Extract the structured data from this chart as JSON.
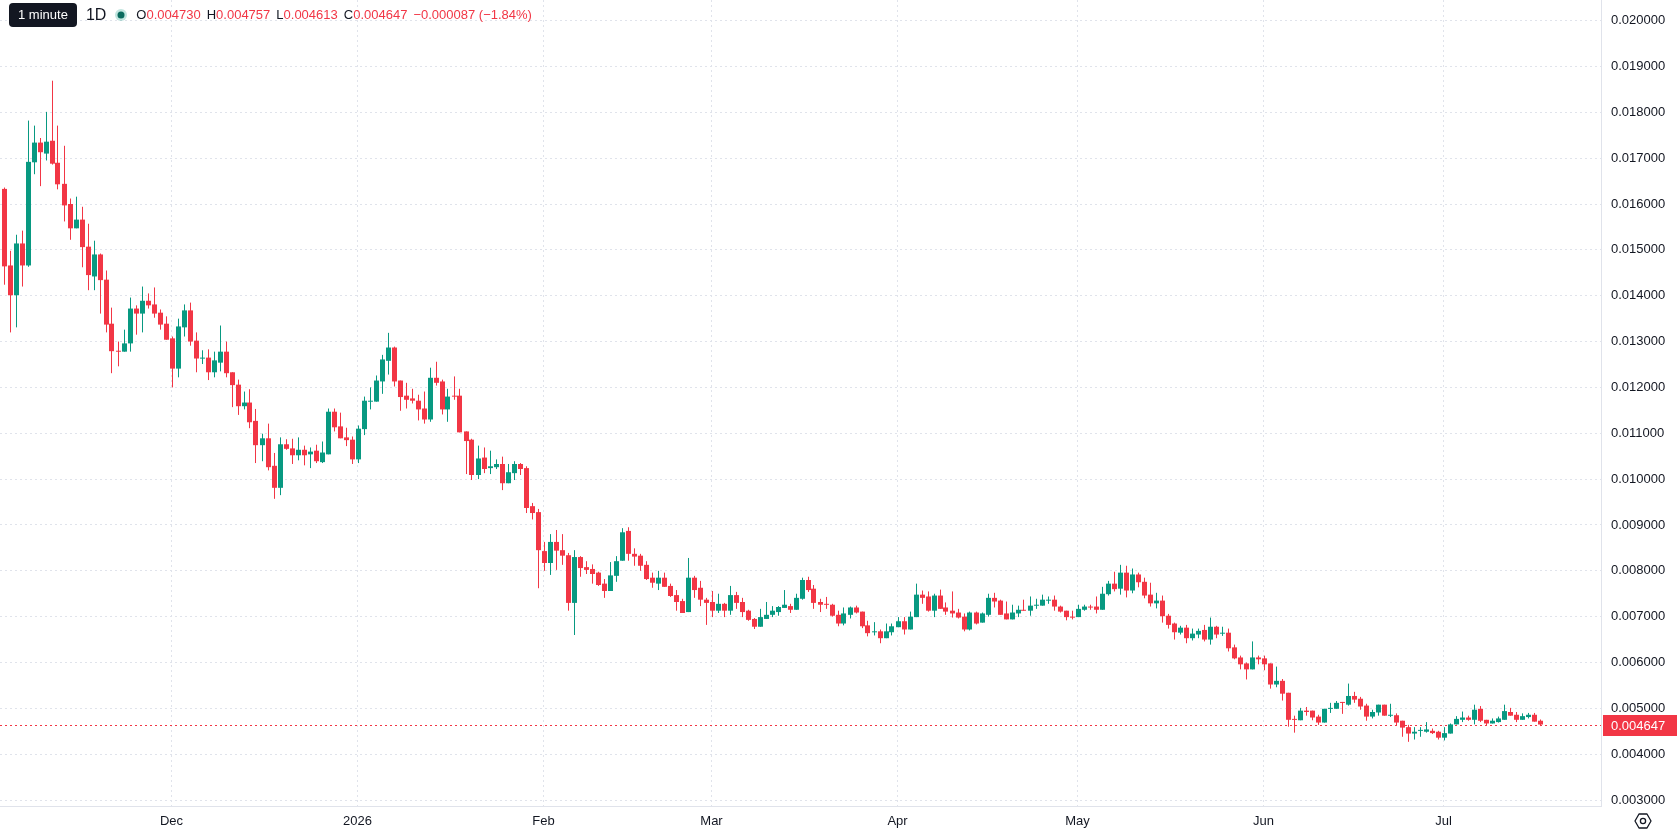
{
  "chart_data": {
    "type": "candlestick",
    "title": "1D",
    "annotations": [
      "1 minute",
      "O0.004730",
      "H0.004757",
      "L0.004613",
      "C0.004647",
      "−0.000087 (−1.84%)"
    ],
    "x": [
      "2025-11-03",
      "2025-11-04",
      "2025-11-05",
      "2025-11-06",
      "2025-11-07",
      "2025-11-08",
      "2025-11-09",
      "2025-11-10",
      "2025-11-11",
      "2025-11-12",
      "2025-11-13",
      "2025-11-14",
      "2025-11-15",
      "2025-11-16",
      "2025-11-17",
      "2025-11-18",
      "2025-11-19",
      "2025-11-20",
      "2025-11-21",
      "2025-11-22",
      "2025-11-23",
      "2025-11-24",
      "2025-11-25",
      "2025-11-26",
      "2025-11-27",
      "2025-11-28",
      "2025-11-29",
      "2025-11-30",
      "2025-12-01",
      "2025-12-02",
      "2025-12-03",
      "2025-12-04",
      "2025-12-05",
      "2025-12-06",
      "2025-12-07",
      "2025-12-08",
      "2025-12-09",
      "2025-12-10",
      "2025-12-11",
      "2025-12-12",
      "2025-12-13",
      "2025-12-14",
      "2025-12-15",
      "2025-12-16",
      "2025-12-17",
      "2025-12-18",
      "2025-12-19",
      "2025-12-20",
      "2025-12-21",
      "2025-12-22",
      "2025-12-23",
      "2025-12-24",
      "2025-12-25",
      "2025-12-26",
      "2025-12-27",
      "2025-12-28",
      "2025-12-29",
      "2025-12-30",
      "2025-12-31",
      "2026-01-01",
      "2026-01-02",
      "2026-01-03",
      "2026-01-04",
      "2026-01-05",
      "2026-01-06",
      "2026-01-07",
      "2026-01-08",
      "2026-01-09",
      "2026-01-10",
      "2026-01-11",
      "2026-01-12",
      "2026-01-13",
      "2026-01-14",
      "2026-01-15",
      "2026-01-16",
      "2026-01-17",
      "2026-01-18",
      "2026-01-19",
      "2026-01-20",
      "2026-01-21",
      "2026-01-22",
      "2026-01-23",
      "2026-01-24",
      "2026-01-25",
      "2026-01-26",
      "2026-01-27",
      "2026-01-28",
      "2026-01-29",
      "2026-01-30",
      "2026-01-31",
      "2026-02-01",
      "2026-02-02",
      "2026-02-03",
      "2026-02-04",
      "2026-02-05",
      "2026-02-06",
      "2026-02-07",
      "2026-02-08",
      "2026-02-09",
      "2026-02-10",
      "2026-02-11",
      "2026-02-12",
      "2026-02-13",
      "2026-02-14",
      "2026-02-15",
      "2026-02-16",
      "2026-02-17",
      "2026-02-18",
      "2026-02-19",
      "2026-02-20",
      "2026-02-21",
      "2026-02-22",
      "2026-02-23",
      "2026-02-24",
      "2026-02-25",
      "2026-02-26",
      "2026-02-27",
      "2026-02-28",
      "2026-03-01",
      "2026-03-02",
      "2026-03-03",
      "2026-03-04",
      "2026-03-05",
      "2026-03-06",
      "2026-03-07",
      "2026-03-08",
      "2026-03-09",
      "2026-03-10",
      "2026-03-11",
      "2026-03-12",
      "2026-03-13",
      "2026-03-14",
      "2026-03-15",
      "2026-03-16",
      "2026-03-17",
      "2026-03-18",
      "2026-03-19",
      "2026-03-20",
      "2026-03-21",
      "2026-03-22",
      "2026-03-23",
      "2026-03-24",
      "2026-03-25",
      "2026-03-26",
      "2026-03-27",
      "2026-03-28",
      "2026-03-29",
      "2026-03-30",
      "2026-03-31",
      "2026-04-01",
      "2026-04-02",
      "2026-04-03",
      "2026-04-04",
      "2026-04-05",
      "2026-04-06",
      "2026-04-07",
      "2026-04-08",
      "2026-04-09",
      "2026-04-10",
      "2026-04-11",
      "2026-04-12",
      "2026-04-13",
      "2026-04-14",
      "2026-04-15",
      "2026-04-16",
      "2026-04-17",
      "2026-04-18",
      "2026-04-19",
      "2026-04-20",
      "2026-04-21",
      "2026-04-22",
      "2026-04-23",
      "2026-04-24",
      "2026-04-25",
      "2026-04-26",
      "2026-04-27",
      "2026-04-28",
      "2026-04-29",
      "2026-04-30",
      "2026-05-01",
      "2026-05-02",
      "2026-05-03",
      "2026-05-04",
      "2026-05-05",
      "2026-05-06",
      "2026-05-07",
      "2026-05-08",
      "2026-05-09",
      "2026-05-10",
      "2026-05-11",
      "2026-05-12",
      "2026-05-13",
      "2026-05-14",
      "2026-05-15",
      "2026-05-16",
      "2026-05-17",
      "2026-05-18",
      "2026-05-19",
      "2026-05-20",
      "2026-05-21",
      "2026-05-22",
      "2026-05-23",
      "2026-05-24",
      "2026-05-25",
      "2026-05-26",
      "2026-05-27",
      "2026-05-28",
      "2026-05-29",
      "2026-05-30",
      "2026-05-31",
      "2026-06-01",
      "2026-06-02",
      "2026-06-03",
      "2026-06-04",
      "2026-06-05",
      "2026-06-06",
      "2026-06-07",
      "2026-06-08",
      "2026-06-09",
      "2026-06-10",
      "2026-06-11",
      "2026-06-12",
      "2026-06-13",
      "2026-06-14",
      "2026-06-15",
      "2026-06-16",
      "2026-06-17",
      "2026-06-18",
      "2026-06-19",
      "2026-06-20",
      "2026-06-21",
      "2026-06-22",
      "2026-06-23",
      "2026-06-24",
      "2026-06-25",
      "2026-06-26",
      "2026-06-27",
      "2026-06-28",
      "2026-06-29",
      "2026-06-30",
      "2026-07-01",
      "2026-07-02",
      "2026-07-03",
      "2026-07-04",
      "2026-07-05",
      "2026-07-06",
      "2026-07-07",
      "2026-07-08",
      "2026-07-09",
      "2026-07-10",
      "2026-07-11",
      "2026-07-12",
      "2026-07-13",
      "2026-07-14",
      "2026-07-15",
      "2026-07-16",
      "2026-07-17"
    ],
    "ohlc": [
      [
        0.01633,
        0.01636,
        0.01424,
        0.01464
      ],
      [
        0.01466,
        0.01498,
        0.0132,
        0.01401
      ],
      [
        0.01401,
        0.01533,
        0.01331,
        0.01514
      ],
      [
        0.01514,
        0.01542,
        0.0142,
        0.01466
      ],
      [
        0.01466,
        0.01782,
        0.01463,
        0.01692
      ],
      [
        0.01691,
        0.01771,
        0.01665,
        0.01734
      ],
      [
        0.01734,
        0.01744,
        0.01639,
        0.01713
      ],
      [
        0.0171,
        0.01801,
        0.01695,
        0.01736
      ],
      [
        0.01738,
        0.01869,
        0.01686,
        0.01688
      ],
      [
        0.0169,
        0.01771,
        0.01632,
        0.01643
      ],
      [
        0.01644,
        0.01727,
        0.01562,
        0.01597
      ],
      [
        0.016,
        0.01612,
        0.01522,
        0.01547
      ],
      [
        0.01547,
        0.01616,
        0.01547,
        0.01566
      ],
      [
        0.01566,
        0.01594,
        0.01462,
        0.01506
      ],
      [
        0.01507,
        0.01557,
        0.01412,
        0.01445
      ],
      [
        0.01442,
        0.0152,
        0.01412,
        0.0149
      ],
      [
        0.0149,
        0.01492,
        0.01361,
        0.01434
      ],
      [
        0.01435,
        0.01455,
        0.0132,
        0.01337
      ],
      [
        0.01339,
        0.01374,
        0.01231,
        0.01279
      ],
      [
        0.0128,
        0.013,
        0.01246,
        0.01278
      ],
      [
        0.01278,
        0.01326,
        0.01278,
        0.01296
      ],
      [
        0.01296,
        0.01396,
        0.01278,
        0.01372
      ],
      [
        0.01372,
        0.01379,
        0.01315,
        0.01361
      ],
      [
        0.01361,
        0.0142,
        0.0132,
        0.01389
      ],
      [
        0.01389,
        0.01405,
        0.01372,
        0.01379
      ],
      [
        0.01381,
        0.01418,
        0.01352,
        0.01361
      ],
      [
        0.01363,
        0.0137,
        0.01326,
        0.01337
      ],
      [
        0.01339,
        0.01355,
        0.01304,
        0.01304
      ],
      [
        0.01307,
        0.01311,
        0.012,
        0.01241
      ],
      [
        0.01241,
        0.0135,
        0.01222,
        0.01333
      ],
      [
        0.01331,
        0.01381,
        0.01311,
        0.01368
      ],
      [
        0.01368,
        0.01385,
        0.01291,
        0.013
      ],
      [
        0.01302,
        0.0132,
        0.01233,
        0.01263
      ],
      [
        0.01263,
        0.01281,
        0.01251,
        0.01265
      ],
      [
        0.01265,
        0.01283,
        0.01216,
        0.01233
      ],
      [
        0.01233,
        0.01278,
        0.01222,
        0.01259
      ],
      [
        0.01254,
        0.01335,
        0.01235,
        0.01278
      ],
      [
        0.01278,
        0.013,
        0.01222,
        0.01231
      ],
      [
        0.01233,
        0.01233,
        0.01157,
        0.01205
      ],
      [
        0.01206,
        0.01217,
        0.0114,
        0.01159
      ],
      [
        0.01159,
        0.01191,
        0.01152,
        0.01167
      ],
      [
        0.01167,
        0.01196,
        0.01111,
        0.01124
      ],
      [
        0.01127,
        0.01153,
        0.01035,
        0.01074
      ],
      [
        0.01074,
        0.01099,
        0.01039,
        0.01089
      ],
      [
        0.01089,
        0.01121,
        0.01019,
        0.01026
      ],
      [
        0.01029,
        0.01057,
        0.00957,
        0.00981
      ],
      [
        0.00981,
        0.01091,
        0.00965,
        0.01076
      ],
      [
        0.01076,
        0.01087,
        0.01064,
        0.01066
      ],
      [
        0.01067,
        0.01088,
        0.01033,
        0.01052
      ],
      [
        0.01052,
        0.01091,
        0.01041,
        0.01064
      ],
      [
        0.01064,
        0.01073,
        0.0103,
        0.01052
      ],
      [
        0.01054,
        0.01069,
        0.01024,
        0.0106
      ],
      [
        0.01062,
        0.01075,
        0.01035,
        0.01039
      ],
      [
        0.01037,
        0.01082,
        0.01035,
        0.01058
      ],
      [
        0.01054,
        0.01154,
        0.01054,
        0.01147
      ],
      [
        0.01147,
        0.01154,
        0.01104,
        0.01113
      ],
      [
        0.01115,
        0.01145,
        0.01089,
        0.01089
      ],
      [
        0.01091,
        0.01112,
        0.01072,
        0.01085
      ],
      [
        0.01086,
        0.01093,
        0.01033,
        0.01043
      ],
      [
        0.01043,
        0.01117,
        0.01035,
        0.0111
      ],
      [
        0.01109,
        0.0118,
        0.01096,
        0.01171
      ],
      [
        0.01169,
        0.012,
        0.01152,
        0.01171
      ],
      [
        0.01169,
        0.01226,
        0.01169,
        0.01215
      ],
      [
        0.01213,
        0.01271,
        0.01186,
        0.01261
      ],
      [
        0.01258,
        0.01319,
        0.01228,
        0.01287
      ],
      [
        0.01287,
        0.01289,
        0.01202,
        0.01213
      ],
      [
        0.01215,
        0.01215,
        0.01149,
        0.01179
      ],
      [
        0.01182,
        0.0121,
        0.01154,
        0.01173
      ],
      [
        0.01176,
        0.01197,
        0.01165,
        0.01171
      ],
      [
        0.01171,
        0.01184,
        0.01128,
        0.01152
      ],
      [
        0.01154,
        0.01191,
        0.01121,
        0.0113
      ],
      [
        0.0113,
        0.01243,
        0.01125,
        0.01221
      ],
      [
        0.01221,
        0.01256,
        0.01204,
        0.0121
      ],
      [
        0.01213,
        0.01217,
        0.01141,
        0.01152
      ],
      [
        0.01152,
        0.01197,
        0.01125,
        0.0118
      ],
      [
        0.01182,
        0.01224,
        0.01173,
        0.0118
      ],
      [
        0.01182,
        0.01197,
        0.01102,
        0.01102
      ],
      [
        0.01104,
        0.01104,
        0.01011,
        0.01083
      ],
      [
        0.01086,
        0.01088,
        0.00998,
        0.01009
      ],
      [
        0.01009,
        0.01073,
        0.01,
        0.01045
      ],
      [
        0.01047,
        0.01069,
        0.01013,
        0.01022
      ],
      [
        0.01024,
        0.01062,
        0.01011,
        0.01028
      ],
      [
        0.01026,
        0.01043,
        0.01022,
        0.01033
      ],
      [
        0.01033,
        0.01049,
        0.00976,
        0.00991
      ],
      [
        0.00991,
        0.01033,
        0.00991,
        0.01015
      ],
      [
        0.01013,
        0.01039,
        0.00998,
        0.01033
      ],
      [
        0.01033,
        0.01035,
        0.01009,
        0.01022
      ],
      [
        0.01024,
        0.01028,
        0.00926,
        0.00937
      ],
      [
        0.00941,
        0.00948,
        0.00912,
        0.00926
      ],
      [
        0.00928,
        0.00935,
        0.00762,
        0.00845
      ],
      [
        0.00843,
        0.00863,
        0.008,
        0.00817
      ],
      [
        0.00817,
        0.0088,
        0.00791,
        0.00863
      ],
      [
        0.00863,
        0.00889,
        0.00802,
        0.00844
      ],
      [
        0.00845,
        0.0088,
        0.00813,
        0.00833
      ],
      [
        0.00834,
        0.00839,
        0.00713,
        0.0073
      ],
      [
        0.0073,
        0.00845,
        0.0066,
        0.0083
      ],
      [
        0.0083,
        0.00832,
        0.00787,
        0.00806
      ],
      [
        0.00808,
        0.00821,
        0.00793,
        0.00802
      ],
      [
        0.00804,
        0.00814,
        0.00772,
        0.00793
      ],
      [
        0.00796,
        0.00798,
        0.00767,
        0.00769
      ],
      [
        0.00772,
        0.00782,
        0.00741,
        0.00756
      ],
      [
        0.00756,
        0.00819,
        0.00756,
        0.0079
      ],
      [
        0.00789,
        0.00832,
        0.00776,
        0.00821
      ],
      [
        0.00822,
        0.00893,
        0.00822,
        0.00884
      ],
      [
        0.00887,
        0.00895,
        0.00822,
        0.00837
      ],
      [
        0.00837,
        0.00849,
        0.00811,
        0.00831
      ],
      [
        0.00833,
        0.00837,
        0.008,
        0.00811
      ],
      [
        0.00813,
        0.00821,
        0.0078,
        0.00782
      ],
      [
        0.00785,
        0.00796,
        0.00763,
        0.00774
      ],
      [
        0.00772,
        0.008,
        0.00758,
        0.00785
      ],
      [
        0.00785,
        0.00796,
        0.00765,
        0.00765
      ],
      [
        0.00767,
        0.00772,
        0.00743,
        0.00745
      ],
      [
        0.00747,
        0.00758,
        0.00713,
        0.00732
      ],
      [
        0.00734,
        0.00739,
        0.00708,
        0.00708
      ],
      [
        0.0071,
        0.00828,
        0.0071,
        0.00785
      ],
      [
        0.00785,
        0.00789,
        0.00741,
        0.00758
      ],
      [
        0.00763,
        0.00778,
        0.00723,
        0.00737
      ],
      [
        0.00737,
        0.00741,
        0.00682,
        0.0073
      ],
      [
        0.00732,
        0.00756,
        0.00699,
        0.00713
      ],
      [
        0.00713,
        0.0075,
        0.00708,
        0.00728
      ],
      [
        0.00728,
        0.0073,
        0.00699,
        0.00713
      ],
      [
        0.00713,
        0.00767,
        0.00704,
        0.00747
      ],
      [
        0.00747,
        0.00754,
        0.00717,
        0.0073
      ],
      [
        0.00732,
        0.00741,
        0.00699,
        0.0071
      ],
      [
        0.00713,
        0.00715,
        0.00691,
        0.00693
      ],
      [
        0.00695,
        0.00697,
        0.00673,
        0.00678
      ],
      [
        0.00678,
        0.00717,
        0.00678,
        0.00699
      ],
      [
        0.00695,
        0.00732,
        0.00695,
        0.00704
      ],
      [
        0.00704,
        0.00723,
        0.00699,
        0.00713
      ],
      [
        0.0071,
        0.00723,
        0.00702,
        0.00721
      ],
      [
        0.00719,
        0.00758,
        0.00719,
        0.00726
      ],
      [
        0.00723,
        0.00728,
        0.00708,
        0.00715
      ],
      [
        0.00715,
        0.0075,
        0.00715,
        0.00741
      ],
      [
        0.00739,
        0.00785,
        0.00737,
        0.0078
      ],
      [
        0.0078,
        0.00787,
        0.00754,
        0.00758
      ],
      [
        0.00761,
        0.00769,
        0.00717,
        0.0073
      ],
      [
        0.00732,
        0.00739,
        0.0071,
        0.00726
      ],
      [
        0.00728,
        0.00743,
        0.00717,
        0.00726
      ],
      [
        0.00726,
        0.00728,
        0.007,
        0.00702
      ],
      [
        0.00704,
        0.00713,
        0.00679,
        0.00685
      ],
      [
        0.00685,
        0.0072,
        0.00681,
        0.00707
      ],
      [
        0.00704,
        0.00722,
        0.00696,
        0.0072
      ],
      [
        0.0072,
        0.00724,
        0.00707,
        0.00709
      ],
      [
        0.00711,
        0.00711,
        0.00675,
        0.00679
      ],
      [
        0.00681,
        0.00691,
        0.00657,
        0.00664
      ],
      [
        0.00666,
        0.00688,
        0.00659,
        0.00668
      ],
      [
        0.00668,
        0.00672,
        0.00642,
        0.00653
      ],
      [
        0.00653,
        0.00685,
        0.00653,
        0.00668
      ],
      [
        0.00666,
        0.00685,
        0.00659,
        0.00679
      ],
      [
        0.00677,
        0.00699,
        0.00677,
        0.0069
      ],
      [
        0.0069,
        0.00699,
        0.00661,
        0.00672
      ],
      [
        0.00672,
        0.00711,
        0.00672,
        0.007
      ],
      [
        0.00699,
        0.00772,
        0.00699,
        0.00748
      ],
      [
        0.00748,
        0.00757,
        0.00728,
        0.00741
      ],
      [
        0.00744,
        0.00755,
        0.00711,
        0.00713
      ],
      [
        0.00713,
        0.0075,
        0.00699,
        0.00746
      ],
      [
        0.00746,
        0.00759,
        0.00717,
        0.00717
      ],
      [
        0.0072,
        0.00731,
        0.00704,
        0.00711
      ],
      [
        0.00713,
        0.00755,
        0.00698,
        0.00707
      ],
      [
        0.00709,
        0.00717,
        0.00696,
        0.00698
      ],
      [
        0.007,
        0.00707,
        0.00668,
        0.00672
      ],
      [
        0.00672,
        0.00711,
        0.0067,
        0.00709
      ],
      [
        0.00709,
        0.00711,
        0.00683,
        0.00685
      ],
      [
        0.00687,
        0.00709,
        0.00687,
        0.00707
      ],
      [
        0.00704,
        0.0075,
        0.007,
        0.00741
      ],
      [
        0.00741,
        0.00752,
        0.0072,
        0.00733
      ],
      [
        0.00735,
        0.00737,
        0.00704,
        0.00704
      ],
      [
        0.00707,
        0.00733,
        0.00694,
        0.00694
      ],
      [
        0.00694,
        0.00726,
        0.00694,
        0.00709
      ],
      [
        0.00707,
        0.00724,
        0.00699,
        0.00715
      ],
      [
        0.00715,
        0.00737,
        0.00713,
        0.00713
      ],
      [
        0.00713,
        0.00744,
        0.00702,
        0.00724
      ],
      [
        0.00724,
        0.00739,
        0.00717,
        0.00726
      ],
      [
        0.00724,
        0.00748,
        0.00724,
        0.00737
      ],
      [
        0.00735,
        0.00744,
        0.00728,
        0.00737
      ],
      [
        0.00737,
        0.00746,
        0.00713,
        0.00722
      ],
      [
        0.00722,
        0.00724,
        0.00709,
        0.00711
      ],
      [
        0.00713,
        0.00713,
        0.00692,
        0.00699
      ],
      [
        0.007,
        0.00713,
        0.00694,
        0.00698
      ],
      [
        0.00699,
        0.00726,
        0.00699,
        0.00717
      ],
      [
        0.00715,
        0.00726,
        0.00713,
        0.00722
      ],
      [
        0.00722,
        0.00726,
        0.00715,
        0.0072
      ],
      [
        0.00722,
        0.00744,
        0.00707,
        0.00715
      ],
      [
        0.00715,
        0.00765,
        0.00715,
        0.0075
      ],
      [
        0.00749,
        0.00778,
        0.00746,
        0.00772
      ],
      [
        0.00772,
        0.00798,
        0.00755,
        0.0076
      ],
      [
        0.00761,
        0.00813,
        0.00748,
        0.00796
      ],
      [
        0.00796,
        0.00811,
        0.00742,
        0.00757
      ],
      [
        0.00757,
        0.00805,
        0.00751,
        0.00792
      ],
      [
        0.00792,
        0.00796,
        0.00764,
        0.00775
      ],
      [
        0.00776,
        0.00785,
        0.0074,
        0.00746
      ],
      [
        0.00748,
        0.00774,
        0.00722,
        0.00729
      ],
      [
        0.00729,
        0.00752,
        0.00718,
        0.00735
      ],
      [
        0.00735,
        0.00746,
        0.00687,
        0.00701
      ],
      [
        0.00702,
        0.00706,
        0.00674,
        0.00682
      ],
      [
        0.00685,
        0.00687,
        0.0065,
        0.00666
      ],
      [
        0.00665,
        0.0068,
        0.00661,
        0.00676
      ],
      [
        0.00676,
        0.00682,
        0.00642,
        0.00653
      ],
      [
        0.00653,
        0.00674,
        0.00648,
        0.00663
      ],
      [
        0.00661,
        0.00674,
        0.00653,
        0.00669
      ],
      [
        0.00671,
        0.00682,
        0.00646,
        0.0065
      ],
      [
        0.0065,
        0.00698,
        0.00639,
        0.00678
      ],
      [
        0.00678,
        0.0068,
        0.00653,
        0.00661
      ],
      [
        0.00663,
        0.00678,
        0.00658,
        0.00665
      ],
      [
        0.00665,
        0.00674,
        0.00624,
        0.00631
      ],
      [
        0.00633,
        0.00639,
        0.00607,
        0.00609
      ],
      [
        0.00611,
        0.00615,
        0.00585,
        0.00596
      ],
      [
        0.00598,
        0.006,
        0.00563,
        0.00585
      ],
      [
        0.00585,
        0.00646,
        0.00585,
        0.00611
      ],
      [
        0.00611,
        0.00615,
        0.00596,
        0.00607
      ],
      [
        0.00609,
        0.00615,
        0.00583,
        0.00596
      ],
      [
        0.00598,
        0.00598,
        0.00543,
        0.00552
      ],
      [
        0.00552,
        0.00591,
        0.00546,
        0.0056
      ],
      [
        0.0056,
        0.00564,
        0.00517,
        0.00532
      ],
      [
        0.00534,
        0.00534,
        0.0046,
        0.00475
      ],
      [
        0.00477,
        0.00484,
        0.00447,
        0.00475
      ],
      [
        0.00474,
        0.00501,
        0.00474,
        0.00495
      ],
      [
        0.00495,
        0.00503,
        0.00484,
        0.00492
      ],
      [
        0.00495,
        0.00495,
        0.00474,
        0.0048
      ],
      [
        0.00482,
        0.00486,
        0.00464,
        0.00469
      ],
      [
        0.00469,
        0.00499,
        0.00469,
        0.00499
      ],
      [
        0.00499,
        0.00512,
        0.0049,
        0.00501
      ],
      [
        0.00499,
        0.00516,
        0.00499,
        0.00512
      ],
      [
        0.00514,
        0.00514,
        0.00488,
        0.00512
      ],
      [
        0.00508,
        0.00554,
        0.00506,
        0.00527
      ],
      [
        0.00527,
        0.00536,
        0.00512,
        0.00519
      ],
      [
        0.00521,
        0.00525,
        0.00497,
        0.00504
      ],
      [
        0.00506,
        0.0051,
        0.00473,
        0.00482
      ],
      [
        0.00482,
        0.00497,
        0.00478,
        0.00492
      ],
      [
        0.00491,
        0.00508,
        0.00484,
        0.00508
      ],
      [
        0.00508,
        0.00508,
        0.00484,
        0.00484
      ],
      [
        0.00484,
        0.0051,
        0.00481,
        0.00486
      ],
      [
        0.00485,
        0.00489,
        0.00463,
        0.00469
      ],
      [
        0.00473,
        0.00473,
        0.00438,
        0.00458
      ],
      [
        0.00459,
        0.00464,
        0.00427,
        0.00445
      ],
      [
        0.00445,
        0.00459,
        0.00432,
        0.00449
      ],
      [
        0.00451,
        0.00459,
        0.00438,
        0.00453
      ],
      [
        0.00449,
        0.0047,
        0.00447,
        0.00454
      ],
      [
        0.00451,
        0.00456,
        0.00444,
        0.00446
      ],
      [
        0.00449,
        0.00451,
        0.00432,
        0.00436
      ],
      [
        0.00436,
        0.00459,
        0.0043,
        0.00446
      ],
      [
        0.00445,
        0.00467,
        0.00445,
        0.00465
      ],
      [
        0.00465,
        0.00483,
        0.00465,
        0.00477
      ],
      [
        0.00475,
        0.00493,
        0.0047,
        0.0048
      ],
      [
        0.0048,
        0.00484,
        0.00473,
        0.00475
      ],
      [
        0.00475,
        0.00508,
        0.00465,
        0.00497
      ],
      [
        0.00499,
        0.00505,
        0.0047,
        0.00473
      ],
      [
        0.00475,
        0.00475,
        0.00462,
        0.00467
      ],
      [
        0.00467,
        0.00478,
        0.00467,
        0.00473
      ],
      [
        0.0047,
        0.00482,
        0.00469,
        0.00478
      ],
      [
        0.00475,
        0.00508,
        0.00475,
        0.00494
      ],
      [
        0.00492,
        0.00501,
        0.00484,
        0.00484
      ],
      [
        0.00486,
        0.00492,
        0.0047,
        0.00475
      ],
      [
        0.00475,
        0.00489,
        0.00475,
        0.00483
      ],
      [
        0.00481,
        0.0049,
        0.00478,
        0.00486
      ],
      [
        0.00486,
        0.0049,
        0.00471,
        0.00471
      ],
      [
        0.00473,
        0.004757,
        0.004613,
        0.004647
      ]
    ],
    "colors": [
      "#f23645",
      "#f23645",
      "#089981",
      "#f23645",
      "#089981",
      "#089981",
      "#f23645",
      "#089981",
      "#f23645",
      "#f23645",
      "#f23645",
      "#f23645",
      "#089981",
      "#f23645",
      "#f23645",
      "#089981",
      "#f23645",
      "#f23645",
      "#f23645",
      "#f23645",
      "#089981",
      "#089981",
      "#f23645",
      "#089981",
      "#f23645",
      "#f23645",
      "#f23645",
      "#f23645",
      "#f23645",
      "#089981",
      "#089981",
      "#f23645",
      "#f23645",
      "#089981",
      "#f23645",
      "#089981",
      "#089981",
      "#f23645",
      "#f23645",
      "#f23645",
      "#089981",
      "#f23645",
      "#f23645",
      "#089981",
      "#f23645",
      "#f23645",
      "#089981",
      "#f23645",
      "#f23645",
      "#089981",
      "#f23645",
      "#089981",
      "#f23645",
      "#089981",
      "#089981",
      "#f23645",
      "#f23645",
      "#f23645",
      "#f23645",
      "#089981",
      "#089981",
      "#089981",
      "#089981",
      "#089981",
      "#089981",
      "#f23645",
      "#f23645",
      "#f23645",
      "#f23645",
      "#f23645",
      "#f23645",
      "#089981",
      "#f23645",
      "#f23645",
      "#089981",
      "#f23645",
      "#f23645",
      "#f23645",
      "#f23645",
      "#089981",
      "#f23645",
      "#089981",
      "#089981",
      "#f23645",
      "#089981",
      "#089981",
      "#f23645",
      "#f23645",
      "#f23645",
      "#f23645",
      "#f23645",
      "#089981",
      "#f23645",
      "#f23645",
      "#f23645",
      "#089981",
      "#f23645",
      "#f23645",
      "#f23645",
      "#f23645",
      "#f23645",
      "#089981",
      "#089981",
      "#089981",
      "#f23645",
      "#f23645",
      "#f23645",
      "#f23645",
      "#f23645",
      "#089981",
      "#f23645",
      "#f23645",
      "#f23645",
      "#f23645",
      "#089981",
      "#f23645",
      "#f23645",
      "#f23645",
      "#f23645",
      "#089981",
      "#f23645",
      "#089981",
      "#f23645",
      "#f23645",
      "#f23645",
      "#f23645",
      "#089981",
      "#089981",
      "#089981",
      "#089981",
      "#089981",
      "#f23645",
      "#089981",
      "#089981",
      "#f23645",
      "#f23645",
      "#f23645",
      "#f23645",
      "#f23645",
      "#f23645",
      "#089981",
      "#089981",
      "#f23645",
      "#f23645",
      "#f23645",
      "#089981",
      "#f23645",
      "#089981",
      "#089981",
      "#089981",
      "#f23645",
      "#089981",
      "#089981",
      "#f23645",
      "#f23645",
      "#089981",
      "#f23645",
      "#f23645",
      "#f23645",
      "#f23645",
      "#f23645",
      "#089981",
      "#f23645",
      "#089981",
      "#089981",
      "#f23645",
      "#f23645",
      "#f23645",
      "#089981",
      "#089981",
      "#f23645",
      "#089981",
      "#089981",
      "#089981",
      "#089981",
      "#f23645",
      "#f23645",
      "#f23645",
      "#f23645",
      "#089981",
      "#089981",
      "#f23645",
      "#f23645",
      "#089981",
      "#089981",
      "#f23645",
      "#089981",
      "#f23645",
      "#089981",
      "#f23645",
      "#f23645",
      "#f23645",
      "#089981",
      "#f23645",
      "#f23645",
      "#f23645",
      "#089981",
      "#f23645",
      "#089981",
      "#089981",
      "#f23645",
      "#089981",
      "#f23645",
      "#089981",
      "#f23645",
      "#f23645",
      "#f23645",
      "#f23645",
      "#089981",
      "#f23645",
      "#f23645",
      "#f23645",
      "#089981",
      "#f23645",
      "#f23645",
      "#f23645",
      "#089981",
      "#f23645",
      "#f23645",
      "#f23645",
      "#089981",
      "#089981",
      "#089981",
      "#f23645",
      "#089981",
      "#f23645",
      "#f23645",
      "#f23645",
      "#089981",
      "#089981",
      "#f23645",
      "#089981",
      "#f23645",
      "#f23645",
      "#f23645",
      "#089981",
      "#089981",
      "#089981",
      "#f23645",
      "#f23645",
      "#089981",
      "#089981",
      "#089981",
      "#089981",
      "#f23645",
      "#089981",
      "#f23645",
      "#f23645",
      "#089981",
      "#089981",
      "#089981",
      "#f23645",
      "#f23645",
      "#089981",
      "#089981",
      "#f23645",
      "#f23645"
    ],
    "xlim": [
      "2025-11-02T10:00",
      "2026-07-27T06:00"
    ],
    "xticks": [
      {
        "value": "2025-12-01",
        "label": "Dec"
      },
      {
        "value": "2026-01-01",
        "label": "2026"
      },
      {
        "value": "2026-02-01",
        "label": "Feb"
      },
      {
        "value": "2026-03-01",
        "label": "Mar"
      },
      {
        "value": "2026-04-01",
        "label": "Apr"
      },
      {
        "value": "2026-05-01",
        "label": "May"
      },
      {
        "value": "2026-06-01",
        "label": "Jun"
      },
      {
        "value": "2026-07-01",
        "label": "Jul"
      }
    ],
    "ylim": [
      0.00287,
      0.02045
    ],
    "yticks": [
      {
        "value": 0.003,
        "label": "0.003000"
      },
      {
        "value": 0.004,
        "label": "0.004000"
      },
      {
        "value": 0.005,
        "label": "0.005000"
      },
      {
        "value": 0.006,
        "label": "0.006000"
      },
      {
        "value": 0.007,
        "label": "0.007000"
      },
      {
        "value": 0.008,
        "label": "0.008000"
      },
      {
        "value": 0.009,
        "label": "0.009000"
      },
      {
        "value": 0.01,
        "label": "0.010000"
      },
      {
        "value": 0.011,
        "label": "0.011000"
      },
      {
        "value": 0.012,
        "label": "0.012000"
      },
      {
        "value": 0.013,
        "label": "0.013000"
      },
      {
        "value": 0.014,
        "label": "0.014000"
      },
      {
        "value": 0.015,
        "label": "0.015000"
      },
      {
        "value": 0.016,
        "label": "0.016000"
      },
      {
        "value": 0.017,
        "label": "0.017000"
      },
      {
        "value": 0.018,
        "label": "0.018000"
      },
      {
        "value": 0.019,
        "label": "0.019000"
      },
      {
        "value": 0.02,
        "label": "0.020000"
      }
    ],
    "grid": true,
    "ref_lines": [
      {
        "axis": "y",
        "value": 0.004647,
        "label": "0.004647",
        "color": "#f23645",
        "line_style": "dotted"
      }
    ]
  }
}
